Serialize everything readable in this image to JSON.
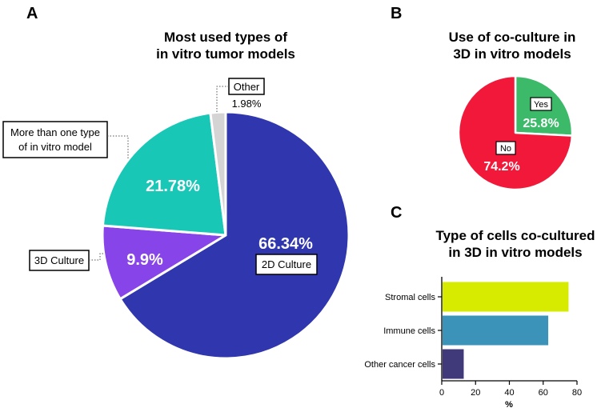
{
  "chart_data": [
    {
      "panel": "A",
      "type": "pie",
      "title": [
        "Most used types of",
        "in vitro tumor models"
      ],
      "slices": [
        {
          "label": "2D Culture",
          "value": 66.34,
          "value_label": "66.34%",
          "color": "#3036ad"
        },
        {
          "label": "3D Culture",
          "value": 9.9,
          "value_label": "9.9%",
          "color": "#8744e8"
        },
        {
          "label": "More than one type of in vitro model",
          "label_lines": [
            "More than one type",
            "of in vitro model"
          ],
          "value": 21.78,
          "value_label": "21.78%",
          "color": "#19c7b6"
        },
        {
          "label": "Other",
          "value": 1.98,
          "value_label": "1.98%",
          "color": "#d4d4d4"
        }
      ]
    },
    {
      "panel": "B",
      "type": "pie",
      "title": [
        "Use of co-culture in",
        "3D in vitro models"
      ],
      "slices": [
        {
          "label": "Yes",
          "value": 25.8,
          "value_label": "25.8%",
          "color": "#3cba6a"
        },
        {
          "label": "No",
          "value": 74.2,
          "value_label": "74.2%",
          "color": "#f2183a"
        }
      ]
    },
    {
      "panel": "C",
      "type": "bar",
      "orientation": "horizontal",
      "title": [
        "Type of cells co-cultured",
        "in 3D in vitro models"
      ],
      "categories": [
        "Stromal cells",
        "Immune cells",
        "Other cancer cells"
      ],
      "values": [
        75,
        63,
        13
      ],
      "colors": [
        "#d7eb00",
        "#3c93ba",
        "#413a7a"
      ],
      "xlabel": "%",
      "xlim": [
        0,
        80
      ],
      "xticks": [
        "0",
        "20",
        "40",
        "60",
        "80"
      ]
    }
  ]
}
